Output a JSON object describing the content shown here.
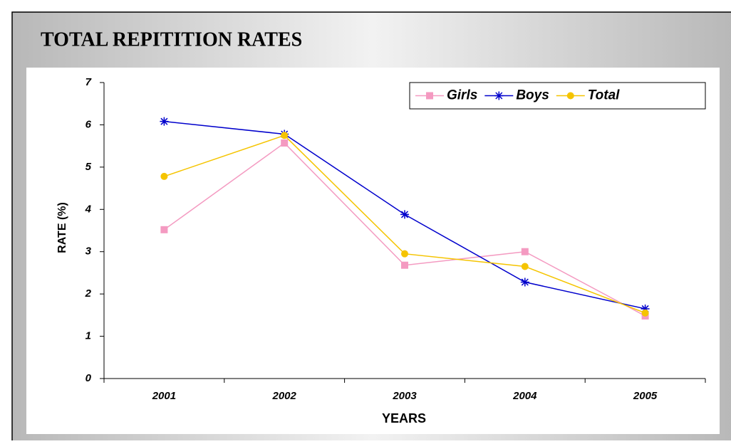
{
  "chart_data": {
    "type": "line",
    "title": "TOTAL REPITITION RATES",
    "categories": [
      "2001",
      "2002",
      "2003",
      "2004",
      "2005"
    ],
    "series": [
      {
        "name": "Girls",
        "color": "#f49ac1",
        "marker": "square",
        "values": [
          3.52,
          5.57,
          2.68,
          3.0,
          1.48
        ]
      },
      {
        "name": "Boys",
        "color": "#0000cc",
        "marker": "asterisk",
        "values": [
          6.08,
          5.78,
          3.88,
          2.28,
          1.65
        ]
      },
      {
        "name": "Total",
        "color": "#f5c400",
        "marker": "circle",
        "values": [
          4.78,
          5.75,
          2.95,
          2.65,
          1.55
        ]
      }
    ],
    "ylim": [
      0,
      7
    ],
    "yticks": [
      0,
      1,
      2,
      3,
      4,
      5,
      6,
      7
    ],
    "x_label": "YEARS",
    "y_label": "RATE (%)",
    "legend": "top-right",
    "grid": false
  }
}
